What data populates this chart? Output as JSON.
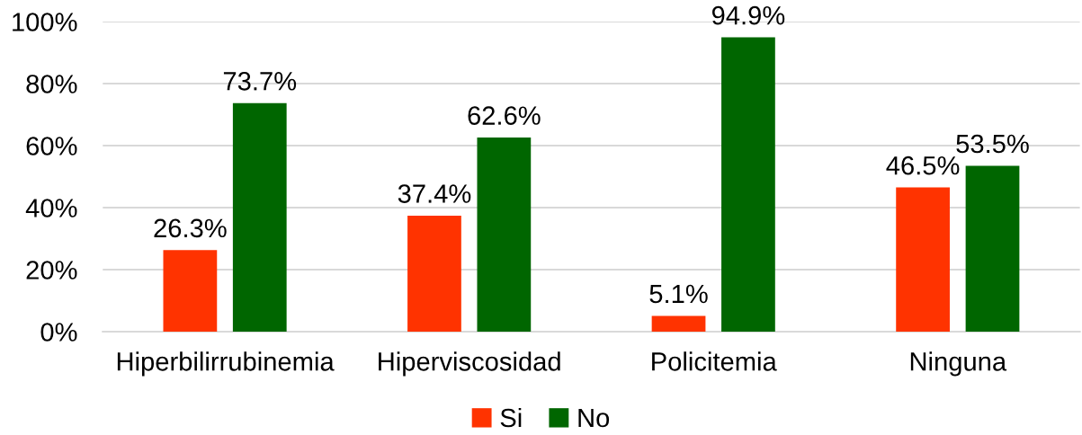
{
  "chart_data": {
    "type": "bar",
    "categories": [
      "Hiperbilirrubinemia",
      "Hiperviscosidad",
      "Policitemia",
      "Ninguna"
    ],
    "series": [
      {
        "name": "Si",
        "color": "#ff3300",
        "values": [
          26.3,
          37.4,
          5.1,
          46.5
        ],
        "value_labels": [
          "26.3%",
          "37.4%",
          "5.1%",
          "46.5%"
        ]
      },
      {
        "name": "No",
        "color": "#006600",
        "values": [
          73.7,
          62.6,
          94.9,
          53.5
        ],
        "value_labels": [
          "73.7%",
          "62.6%",
          "94.9%",
          "53.5%"
        ]
      }
    ],
    "ylim": [
      0,
      100
    ],
    "yticks": [
      {
        "value": 0,
        "label": "0%"
      },
      {
        "value": 20,
        "label": "20%"
      },
      {
        "value": 40,
        "label": "40%"
      },
      {
        "value": 60,
        "label": "60%"
      },
      {
        "value": 80,
        "label": "80%"
      },
      {
        "value": 100,
        "label": "100%"
      }
    ],
    "grid": "y",
    "legend": "bottom"
  }
}
